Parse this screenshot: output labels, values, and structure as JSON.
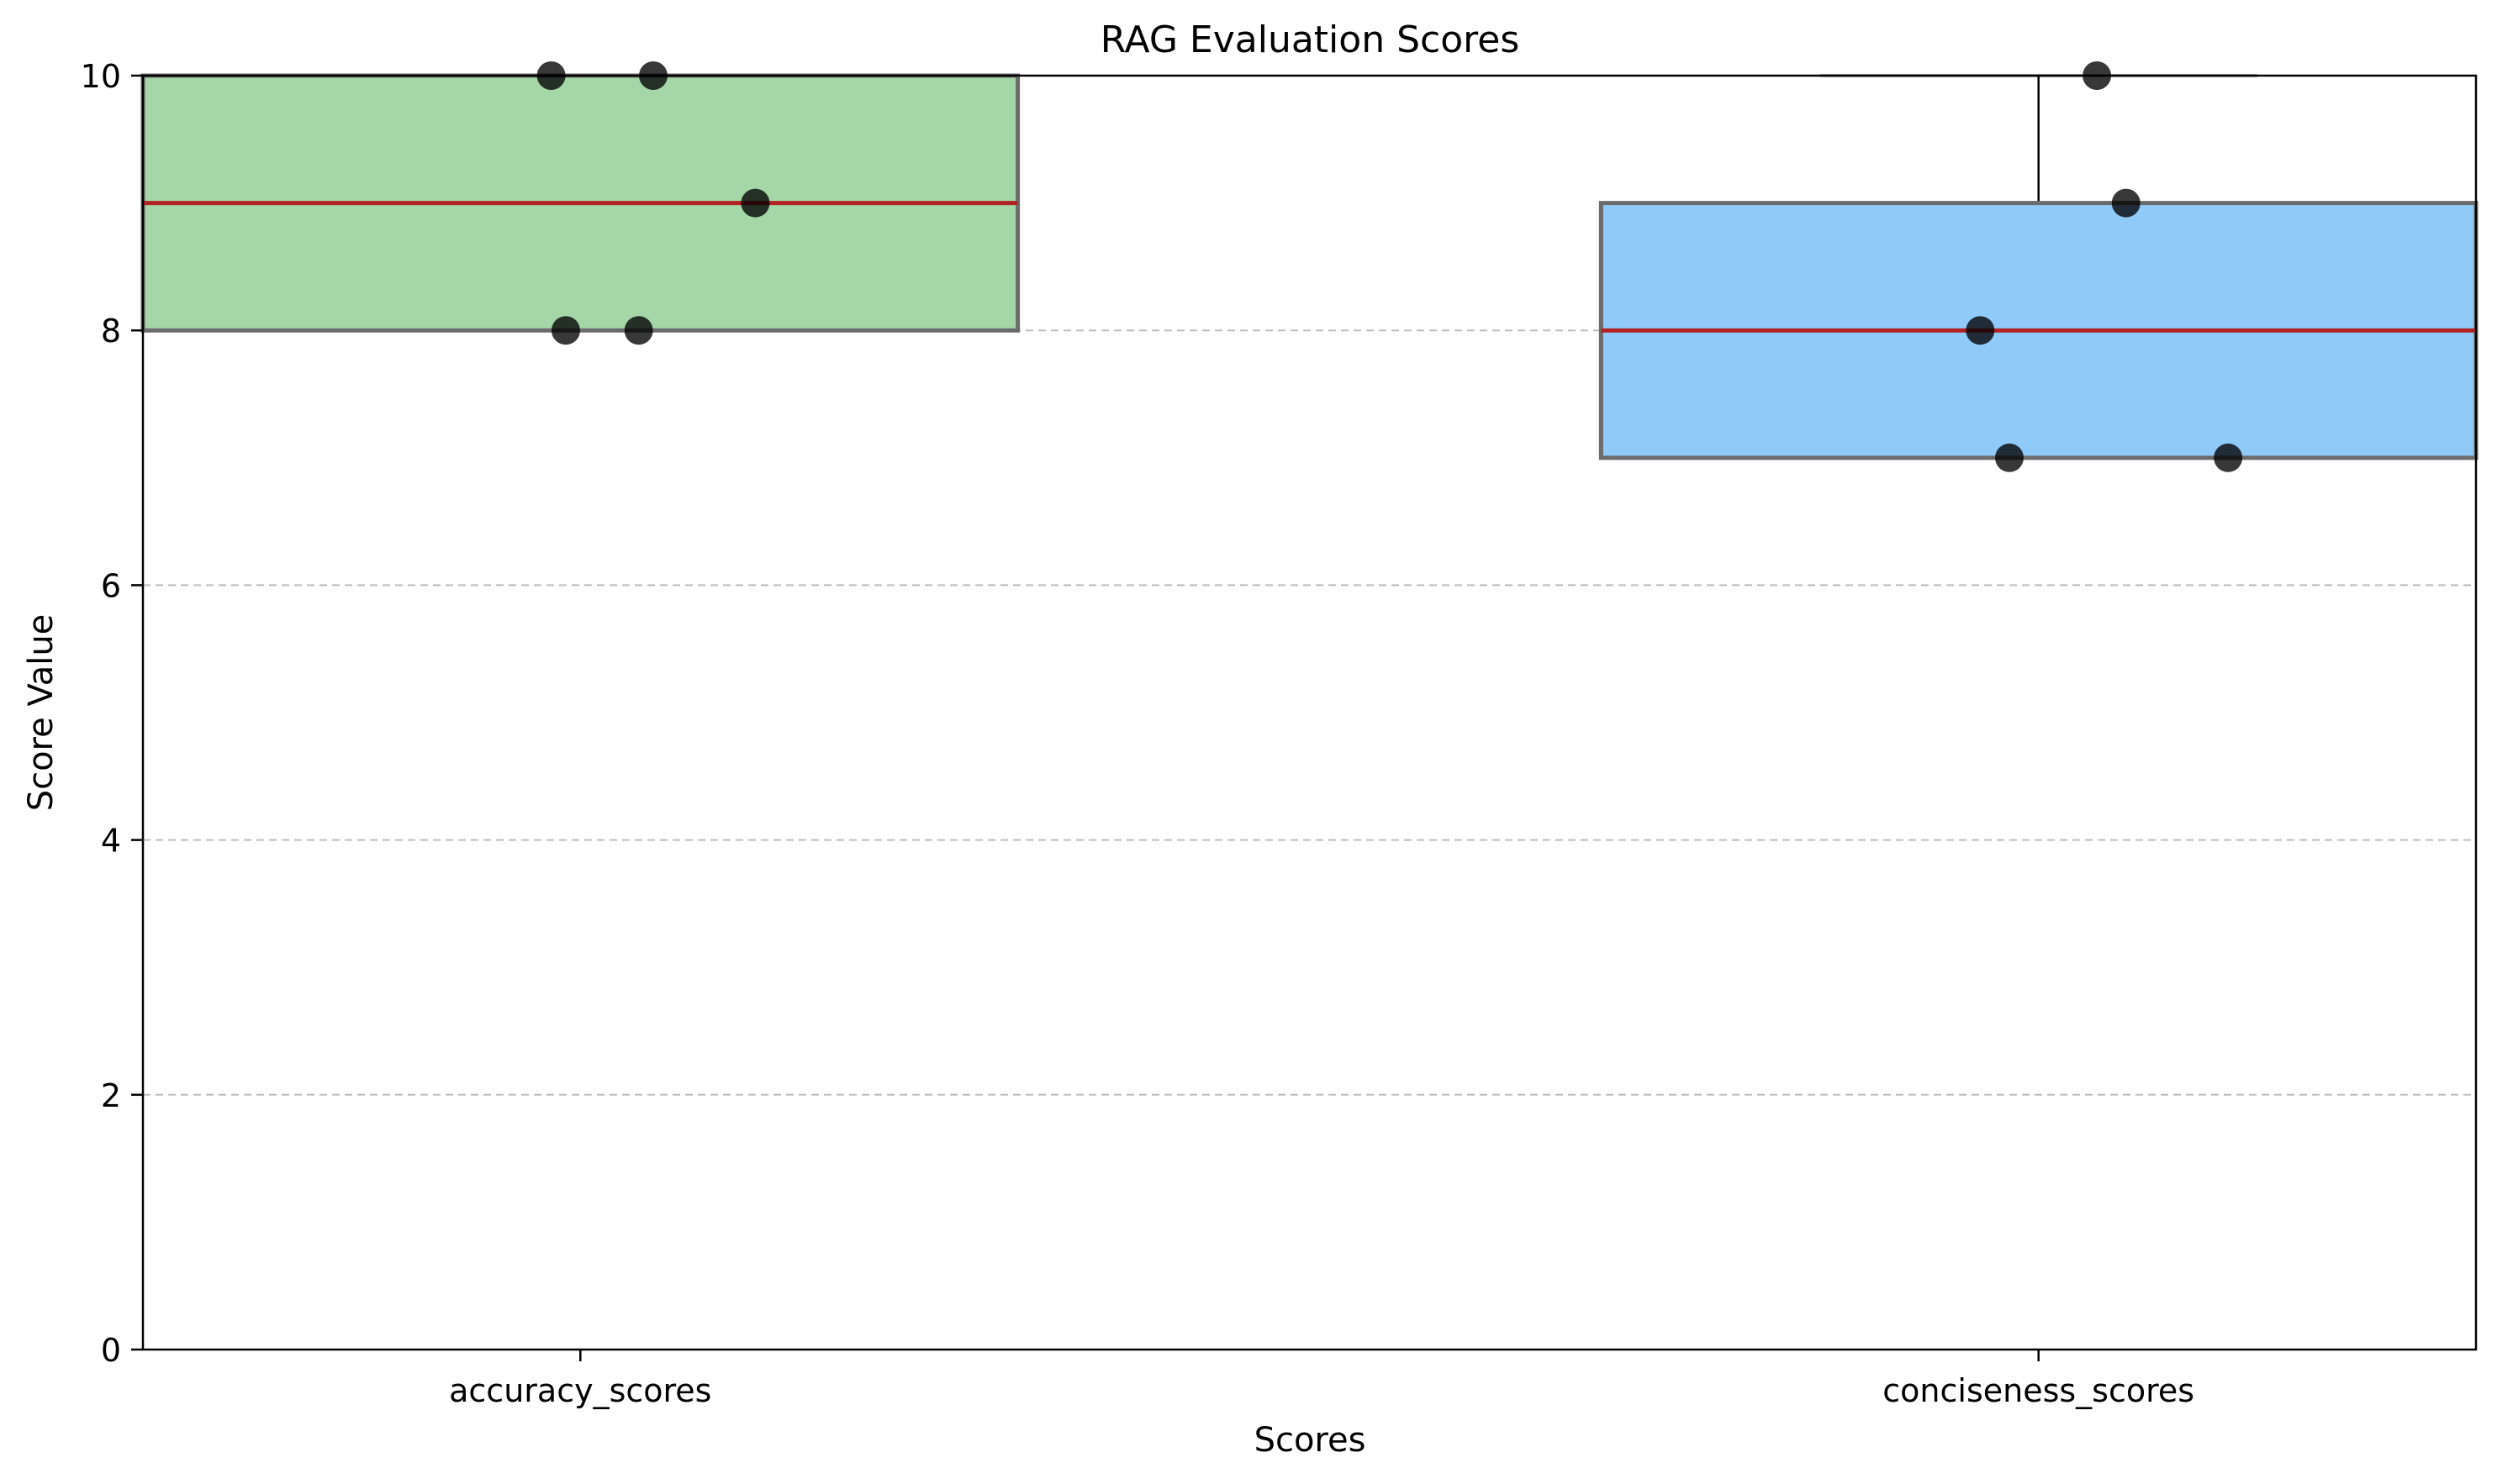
{
  "chart_data": {
    "type": "box",
    "title": "RAG Evaluation Scores",
    "xlabel": "Scores",
    "ylabel": "Score Value",
    "ylim": [
      0,
      10
    ],
    "yticks": [
      0,
      2,
      4,
      6,
      8,
      10
    ],
    "grid": "y-dashed",
    "categories": [
      "accuracy_scores",
      "conciseness_scores"
    ],
    "boxes": [
      {
        "category": "accuracy_scores",
        "q1": 8,
        "median": 9,
        "q3": 10,
        "whisker_low": 8,
        "whisker_high": 10,
        "fill": "#a5d6a7"
      },
      {
        "category": "conciseness_scores",
        "q1": 7,
        "median": 8,
        "q3": 9,
        "whisker_low": 7,
        "whisker_high": 10,
        "fill": "#90caf9"
      }
    ],
    "points": [
      {
        "category": "accuracy_scores",
        "y": 10,
        "jitter": -0.02
      },
      {
        "category": "accuracy_scores",
        "y": 10,
        "jitter": 0.05
      },
      {
        "category": "accuracy_scores",
        "y": 9,
        "jitter": 0.12
      },
      {
        "category": "accuracy_scores",
        "y": 8,
        "jitter": -0.01
      },
      {
        "category": "accuracy_scores",
        "y": 8,
        "jitter": 0.04
      },
      {
        "category": "conciseness_scores",
        "y": 10,
        "jitter": 0.04
      },
      {
        "category": "conciseness_scores",
        "y": 9,
        "jitter": 0.06
      },
      {
        "category": "conciseness_scores",
        "y": 8,
        "jitter": -0.04
      },
      {
        "category": "conciseness_scores",
        "y": 7,
        "jitter": -0.02
      },
      {
        "category": "conciseness_scores",
        "y": 7,
        "jitter": 0.13
      }
    ],
    "colors": {
      "median": "#b22222",
      "box_edge": "#6b6b6b",
      "point": "#000000",
      "grid": "#bdbdbd"
    }
  }
}
